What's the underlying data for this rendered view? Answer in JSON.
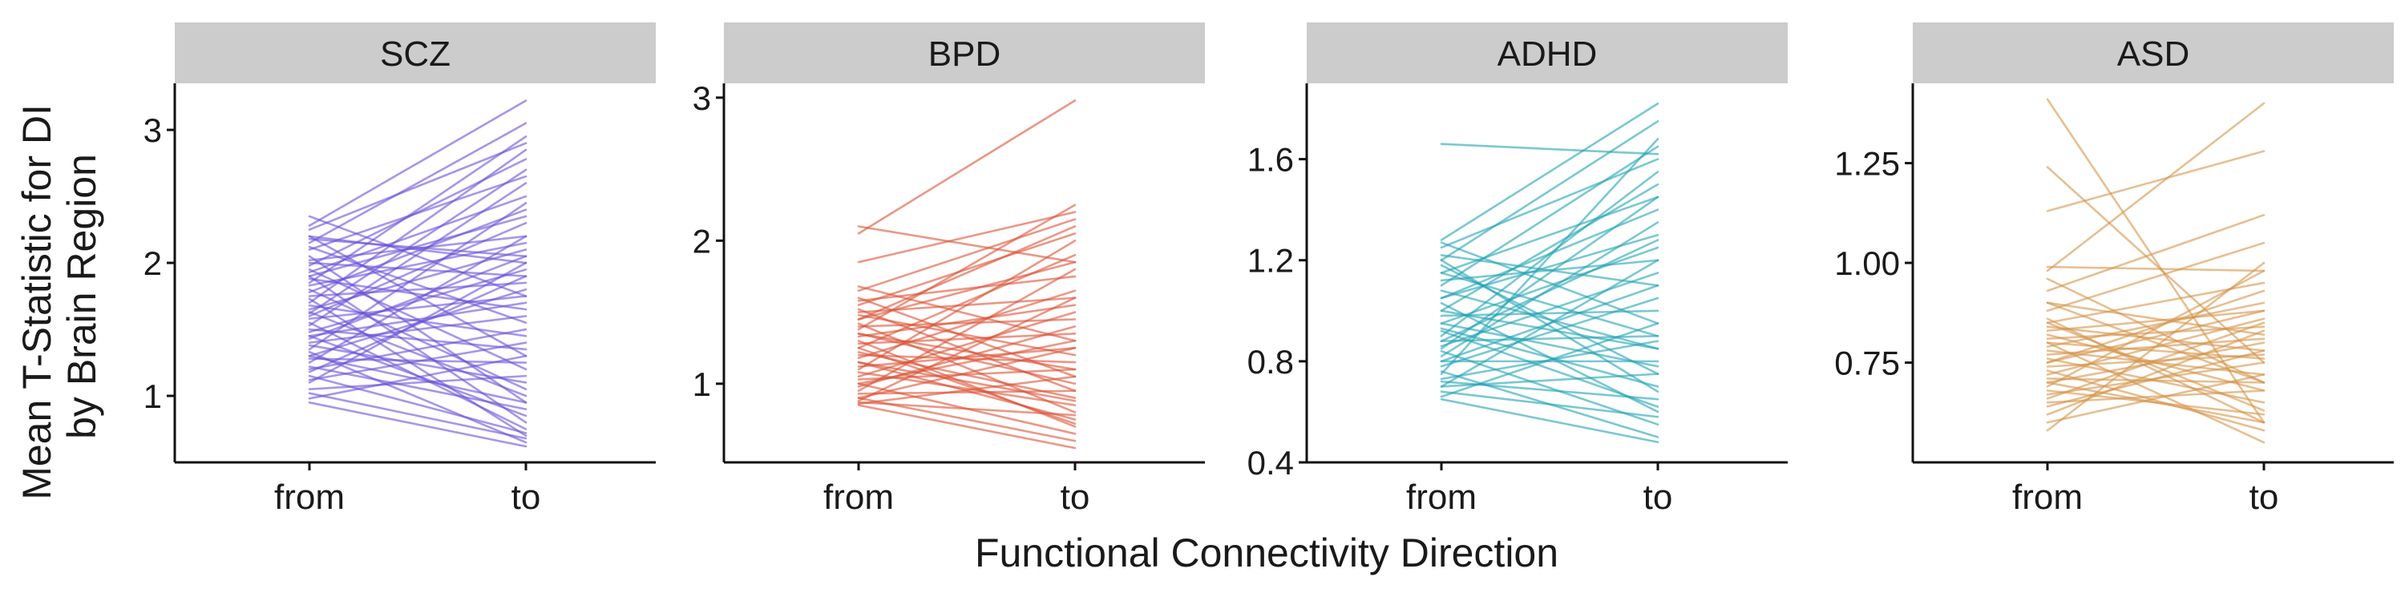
{
  "figure": {
    "ylabel_line1": "Mean T-Statistic for DI",
    "ylabel_line2": "by Brain Region",
    "xlabel": "Functional Connectivity Direction",
    "strip_color": "#cccccc"
  },
  "chart_data": [
    {
      "type": "line",
      "panel": "SCZ",
      "color": "#6a50d8",
      "categories": [
        "from",
        "to"
      ],
      "ylim": [
        0.5,
        3.35
      ],
      "yticks": [
        1,
        2,
        3
      ],
      "ytick_labels": [
        "1",
        "2",
        "3"
      ],
      "series": [
        {
          "values": [
            2.35,
            1.75
          ]
        },
        {
          "values": [
            2.28,
            3.22
          ]
        },
        {
          "values": [
            2.25,
            2.9
          ]
        },
        {
          "values": [
            2.2,
            1.3
          ]
        },
        {
          "values": [
            2.18,
            2.05
          ]
        },
        {
          "values": [
            2.15,
            3.05
          ]
        },
        {
          "values": [
            2.12,
            1.55
          ]
        },
        {
          "values": [
            2.1,
            2.65
          ]
        },
        {
          "values": [
            2.05,
            0.95
          ]
        },
        {
          "values": [
            2.02,
            2.2
          ]
        },
        {
          "values": [
            2.0,
            1.9
          ]
        },
        {
          "values": [
            1.98,
            2.78
          ]
        },
        {
          "values": [
            1.95,
            1.2
          ]
        },
        {
          "values": [
            1.93,
            2.5
          ]
        },
        {
          "values": [
            1.9,
            0.8
          ]
        },
        {
          "values": [
            1.88,
            1.65
          ]
        },
        {
          "values": [
            1.85,
            2.95
          ]
        },
        {
          "values": [
            1.83,
            2.15
          ]
        },
        {
          "values": [
            1.8,
            1.05
          ]
        },
        {
          "values": [
            1.78,
            2.4
          ]
        },
        {
          "values": [
            1.75,
            1.85
          ]
        },
        {
          "values": [
            1.73,
            0.7
          ]
        },
        {
          "values": [
            1.7,
            2.85
          ]
        },
        {
          "values": [
            1.68,
            1.45
          ]
        },
        {
          "values": [
            1.65,
            2.1
          ]
        },
        {
          "values": [
            1.63,
            1.0
          ]
        },
        {
          "values": [
            1.6,
            2.3
          ]
        },
        {
          "values": [
            1.58,
            1.75
          ]
        },
        {
          "values": [
            1.55,
            0.75
          ]
        },
        {
          "values": [
            1.53,
            2.6
          ]
        },
        {
          "values": [
            1.5,
            1.35
          ]
        },
        {
          "values": [
            1.48,
            1.95
          ]
        },
        {
          "values": [
            1.45,
            0.85
          ]
        },
        {
          "values": [
            1.43,
            2.05
          ]
        },
        {
          "values": [
            1.4,
            1.6
          ]
        },
        {
          "values": [
            1.38,
            1.1
          ]
        },
        {
          "values": [
            1.35,
            2.45
          ]
        },
        {
          "values": [
            1.33,
            0.65
          ]
        },
        {
          "values": [
            1.3,
            1.8
          ]
        },
        {
          "values": [
            1.28,
            1.25
          ]
        },
        {
          "values": [
            1.25,
            2.2
          ]
        },
        {
          "values": [
            1.22,
            0.9
          ]
        },
        {
          "values": [
            1.2,
            1.5
          ]
        },
        {
          "values": [
            1.18,
            1.9
          ]
        },
        {
          "values": [
            1.15,
            0.72
          ]
        },
        {
          "values": [
            1.12,
            1.4
          ]
        },
        {
          "values": [
            1.1,
            2.0
          ]
        },
        {
          "values": [
            1.05,
            1.15
          ]
        },
        {
          "values": [
            1.02,
            0.68
          ]
        },
        {
          "values": [
            0.98,
            1.3
          ]
        },
        {
          "values": [
            0.95,
            0.62
          ]
        },
        {
          "values": [
            1.9,
            2.35
          ]
        },
        {
          "values": [
            1.62,
            2.7
          ]
        },
        {
          "values": [
            1.45,
            1.7
          ]
        },
        {
          "values": [
            1.3,
            0.95
          ]
        },
        {
          "values": [
            2.2,
            2.0
          ]
        }
      ]
    },
    {
      "type": "line",
      "panel": "BPD",
      "color": "#dc5135",
      "categories": [
        "from",
        "to"
      ],
      "ylim": [
        0.45,
        3.1
      ],
      "yticks": [
        1,
        2,
        3
      ],
      "ytick_labels": [
        "1",
        "2",
        "3"
      ],
      "series": [
        {
          "values": [
            2.05,
            2.98
          ]
        },
        {
          "values": [
            2.1,
            1.85
          ]
        },
        {
          "values": [
            1.85,
            2.2
          ]
        },
        {
          "values": [
            1.68,
            1.3
          ]
        },
        {
          "values": [
            1.65,
            2.15
          ]
        },
        {
          "values": [
            1.6,
            1.05
          ]
        },
        {
          "values": [
            1.58,
            1.75
          ]
        },
        {
          "values": [
            1.55,
            2.05
          ]
        },
        {
          "values": [
            1.52,
            0.95
          ]
        },
        {
          "values": [
            1.5,
            1.6
          ]
        },
        {
          "values": [
            1.48,
            1.2
          ]
        },
        {
          "values": [
            1.45,
            1.85
          ]
        },
        {
          "values": [
            1.42,
            0.8
          ]
        },
        {
          "values": [
            1.4,
            1.45
          ]
        },
        {
          "values": [
            1.38,
            2.25
          ]
        },
        {
          "values": [
            1.35,
            1.0
          ]
        },
        {
          "values": [
            1.33,
            1.55
          ]
        },
        {
          "values": [
            1.3,
            0.7
          ]
        },
        {
          "values": [
            1.28,
            1.35
          ]
        },
        {
          "values": [
            1.25,
            1.9
          ]
        },
        {
          "values": [
            1.22,
            0.9
          ]
        },
        {
          "values": [
            1.2,
            1.15
          ]
        },
        {
          "values": [
            1.18,
            1.65
          ]
        },
        {
          "values": [
            1.15,
            0.75
          ]
        },
        {
          "values": [
            1.12,
            1.25
          ]
        },
        {
          "values": [
            1.1,
            2.0
          ]
        },
        {
          "values": [
            1.08,
            0.85
          ]
        },
        {
          "values": [
            1.05,
            1.5
          ]
        },
        {
          "values": [
            1.03,
            1.1
          ]
        },
        {
          "values": [
            1.0,
            0.65
          ]
        },
        {
          "values": [
            0.98,
            1.4
          ]
        },
        {
          "values": [
            0.95,
            1.8
          ]
        },
        {
          "values": [
            0.93,
            0.95
          ]
        },
        {
          "values": [
            0.9,
            1.25
          ]
        },
        {
          "values": [
            0.9,
            0.6
          ]
        },
        {
          "values": [
            0.88,
            1.6
          ]
        },
        {
          "values": [
            0.87,
            0.78
          ]
        },
        {
          "values": [
            0.86,
            1.05
          ]
        },
        {
          "values": [
            0.85,
            0.55
          ]
        },
        {
          "values": [
            1.45,
            2.1
          ]
        },
        {
          "values": [
            1.25,
            0.72
          ]
        },
        {
          "values": [
            1.0,
            1.3
          ]
        },
        {
          "values": [
            1.15,
            0.88
          ]
        },
        {
          "values": [
            1.35,
            1.1
          ]
        }
      ]
    },
    {
      "type": "line",
      "panel": "ADHD",
      "color": "#1fa3b4",
      "categories": [
        "from",
        "to"
      ],
      "ylim": [
        0.4,
        1.9
      ],
      "yticks": [
        0.4,
        0.8,
        1.2,
        1.6
      ],
      "ytick_labels": [
        "0.4",
        "0.8",
        "1.2",
        "1.6"
      ],
      "series": [
        {
          "values": [
            1.66,
            1.62
          ]
        },
        {
          "values": [
            1.28,
            1.82
          ]
        },
        {
          "values": [
            1.27,
            0.95
          ]
        },
        {
          "values": [
            1.25,
            1.6
          ]
        },
        {
          "values": [
            1.22,
            1.1
          ]
        },
        {
          "values": [
            1.2,
            1.75
          ]
        },
        {
          "values": [
            1.18,
            0.75
          ]
        },
        {
          "values": [
            1.15,
            1.45
          ]
        },
        {
          "values": [
            1.12,
            1.2
          ]
        },
        {
          "values": [
            1.1,
            1.65
          ]
        },
        {
          "values": [
            1.08,
            0.85
          ]
        },
        {
          "values": [
            1.05,
            1.3
          ]
        },
        {
          "values": [
            1.03,
            0.6
          ]
        },
        {
          "values": [
            1.0,
            1.5
          ]
        },
        {
          "values": [
            0.98,
            1.0
          ]
        },
        {
          "values": [
            0.95,
            1.25
          ]
        },
        {
          "values": [
            0.93,
            0.7
          ]
        },
        {
          "values": [
            0.9,
            1.55
          ]
        },
        {
          "values": [
            0.88,
            0.9
          ]
        },
        {
          "values": [
            0.86,
            1.15
          ]
        },
        {
          "values": [
            0.84,
            0.55
          ]
        },
        {
          "values": [
            0.82,
            1.35
          ]
        },
        {
          "values": [
            0.8,
            0.8
          ]
        },
        {
          "values": [
            0.78,
            1.05
          ]
        },
        {
          "values": [
            0.76,
            0.5
          ]
        },
        {
          "values": [
            0.75,
            1.68
          ]
        },
        {
          "values": [
            0.73,
            0.88
          ]
        },
        {
          "values": [
            0.72,
            0.65
          ]
        },
        {
          "values": [
            0.7,
            1.2
          ]
        },
        {
          "values": [
            0.68,
            0.58
          ]
        },
        {
          "values": [
            0.66,
            0.95
          ]
        },
        {
          "values": [
            0.65,
            0.48
          ]
        },
        {
          "values": [
            1.0,
            0.85
          ]
        },
        {
          "values": [
            0.85,
            1.45
          ]
        },
        {
          "values": [
            0.92,
            0.62
          ]
        },
        {
          "values": [
            1.15,
            0.9
          ]
        },
        {
          "values": [
            0.8,
            1.1
          ]
        },
        {
          "values": [
            0.7,
            0.75
          ]
        },
        {
          "values": [
            1.05,
            1.4
          ]
        },
        {
          "values": [
            0.95,
            0.78
          ]
        },
        {
          "values": [
            1.2,
            0.68
          ]
        },
        {
          "values": [
            0.88,
            1.28
          ]
        }
      ]
    },
    {
      "type": "line",
      "panel": "ASD",
      "color": "#d6954a",
      "categories": [
        "from",
        "to"
      ],
      "ylim": [
        0.5,
        1.45
      ],
      "yticks": [
        0.75,
        1.0,
        1.25
      ],
      "ytick_labels": [
        "0.75",
        "1.00",
        "1.25"
      ],
      "series": [
        {
          "values": [
            1.41,
            0.6
          ]
        },
        {
          "values": [
            1.24,
            0.75
          ]
        },
        {
          "values": [
            1.13,
            1.28
          ]
        },
        {
          "values": [
            0.99,
            0.98
          ]
        },
        {
          "values": [
            0.98,
            1.4
          ]
        },
        {
          "values": [
            0.96,
            0.7
          ]
        },
        {
          "values": [
            0.93,
            1.12
          ]
        },
        {
          "values": [
            0.9,
            0.82
          ]
        },
        {
          "values": [
            0.88,
            1.05
          ]
        },
        {
          "values": [
            0.86,
            0.6
          ]
        },
        {
          "values": [
            0.85,
            0.95
          ]
        },
        {
          "values": [
            0.84,
            0.78
          ]
        },
        {
          "values": [
            0.83,
            0.88
          ]
        },
        {
          "values": [
            0.82,
            0.68
          ]
        },
        {
          "values": [
            0.81,
            0.84
          ]
        },
        {
          "values": [
            0.8,
            0.55
          ]
        },
        {
          "values": [
            0.79,
            0.9
          ]
        },
        {
          "values": [
            0.78,
            0.72
          ]
        },
        {
          "values": [
            0.77,
            0.81
          ]
        },
        {
          "values": [
            0.76,
            0.65
          ]
        },
        {
          "values": [
            0.75,
            0.93
          ]
        },
        {
          "values": [
            0.74,
            0.77
          ]
        },
        {
          "values": [
            0.73,
            0.58
          ]
        },
        {
          "values": [
            0.72,
            0.86
          ]
        },
        {
          "values": [
            0.71,
            0.7
          ]
        },
        {
          "values": [
            0.7,
            0.8
          ]
        },
        {
          "values": [
            0.69,
            0.98
          ]
        },
        {
          "values": [
            0.68,
            0.62
          ]
        },
        {
          "values": [
            0.67,
            0.75
          ]
        },
        {
          "values": [
            0.66,
            0.85
          ]
        },
        {
          "values": [
            0.65,
            0.68
          ]
        },
        {
          "values": [
            0.64,
            0.78
          ]
        },
        {
          "values": [
            0.62,
            0.83
          ]
        },
        {
          "values": [
            0.6,
            0.72
          ]
        },
        {
          "values": [
            0.58,
            1.0
          ]
        },
        {
          "values": [
            0.85,
            0.63
          ]
        },
        {
          "values": [
            0.75,
            0.88
          ]
        },
        {
          "values": [
            0.7,
            0.6
          ]
        },
        {
          "values": [
            0.8,
            0.76
          ]
        },
        {
          "values": [
            0.9,
            0.7
          ]
        }
      ]
    }
  ]
}
